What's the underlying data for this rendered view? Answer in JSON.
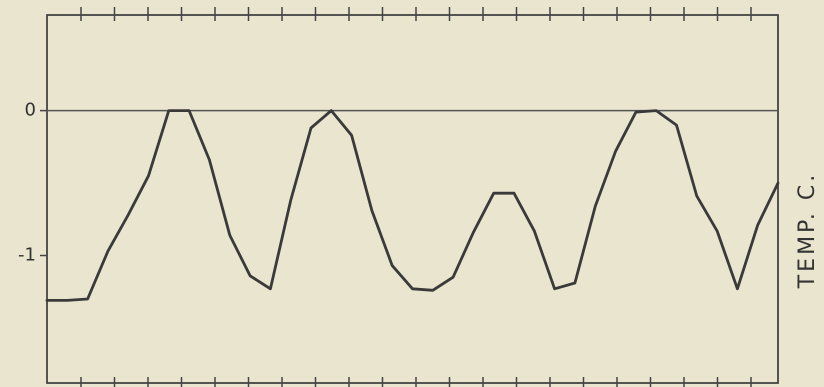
{
  "chart_data": {
    "type": "line",
    "y_label": "TEMP. C.",
    "series": [
      {
        "color": "#3a3a3a",
        "values": [
          -1.31,
          -1.31,
          -1.3,
          -0.97,
          -0.72,
          -0.45,
          0,
          0,
          -0.34,
          -0.86,
          -1.14,
          -1.23,
          -0.62,
          -0.12,
          0,
          -0.17,
          -0.69,
          -1.07,
          -1.23,
          -1.24,
          -1.15,
          -0.84,
          -0.57,
          -0.57,
          -0.83,
          -1.23,
          -1.19,
          -0.66,
          -0.28,
          -0.01,
          0,
          -0.1,
          -0.59,
          -0.83,
          -1.23,
          -0.79,
          -0.5
        ]
      }
    ],
    "ylim": [
      -1.88,
      0.66
    ],
    "yticks": [
      0,
      -1
    ],
    "grid": true
  }
}
